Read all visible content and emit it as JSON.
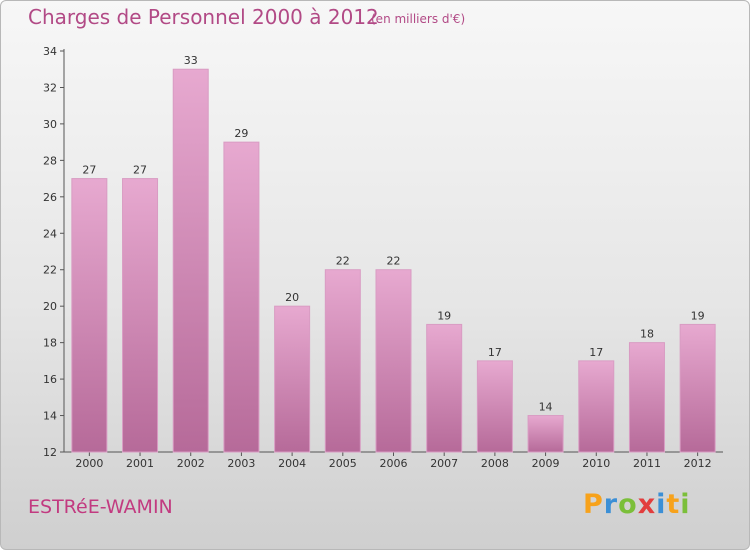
{
  "title": "Charges de Personnel 2000 à 2012",
  "subtitle": "(en milliers d'€)",
  "commune": "ESTRéE-WAMIN",
  "logo": {
    "letters": [
      "P",
      "r",
      "o",
      "x",
      "i",
      "t",
      "i"
    ],
    "colors": [
      "#f7a21b",
      "#3b8fd6",
      "#7bbf3a",
      "#e23d3d",
      "#3b8fd6",
      "#f7a21b",
      "#7bbf3a"
    ]
  },
  "colors": {
    "bar_top": "#e7a9d0",
    "bar_bottom": "#b66a99",
    "text_accent": "#b24a86"
  },
  "chart_data": {
    "type": "bar",
    "categories": [
      "2000",
      "2001",
      "2002",
      "2003",
      "2004",
      "2005",
      "2006",
      "2007",
      "2008",
      "2009",
      "2010",
      "2011",
      "2012"
    ],
    "values": [
      27,
      27,
      33,
      29,
      20,
      22,
      22,
      19,
      17,
      14,
      17,
      18,
      19
    ],
    "title": "Charges de Personnel 2000 à 2012",
    "subtitle": "(en milliers d'€)",
    "ylim": [
      12,
      34
    ],
    "yticks": [
      12,
      14,
      16,
      18,
      20,
      22,
      24,
      26,
      28,
      30,
      32,
      34
    ],
    "grid": false,
    "data_labels": true
  }
}
